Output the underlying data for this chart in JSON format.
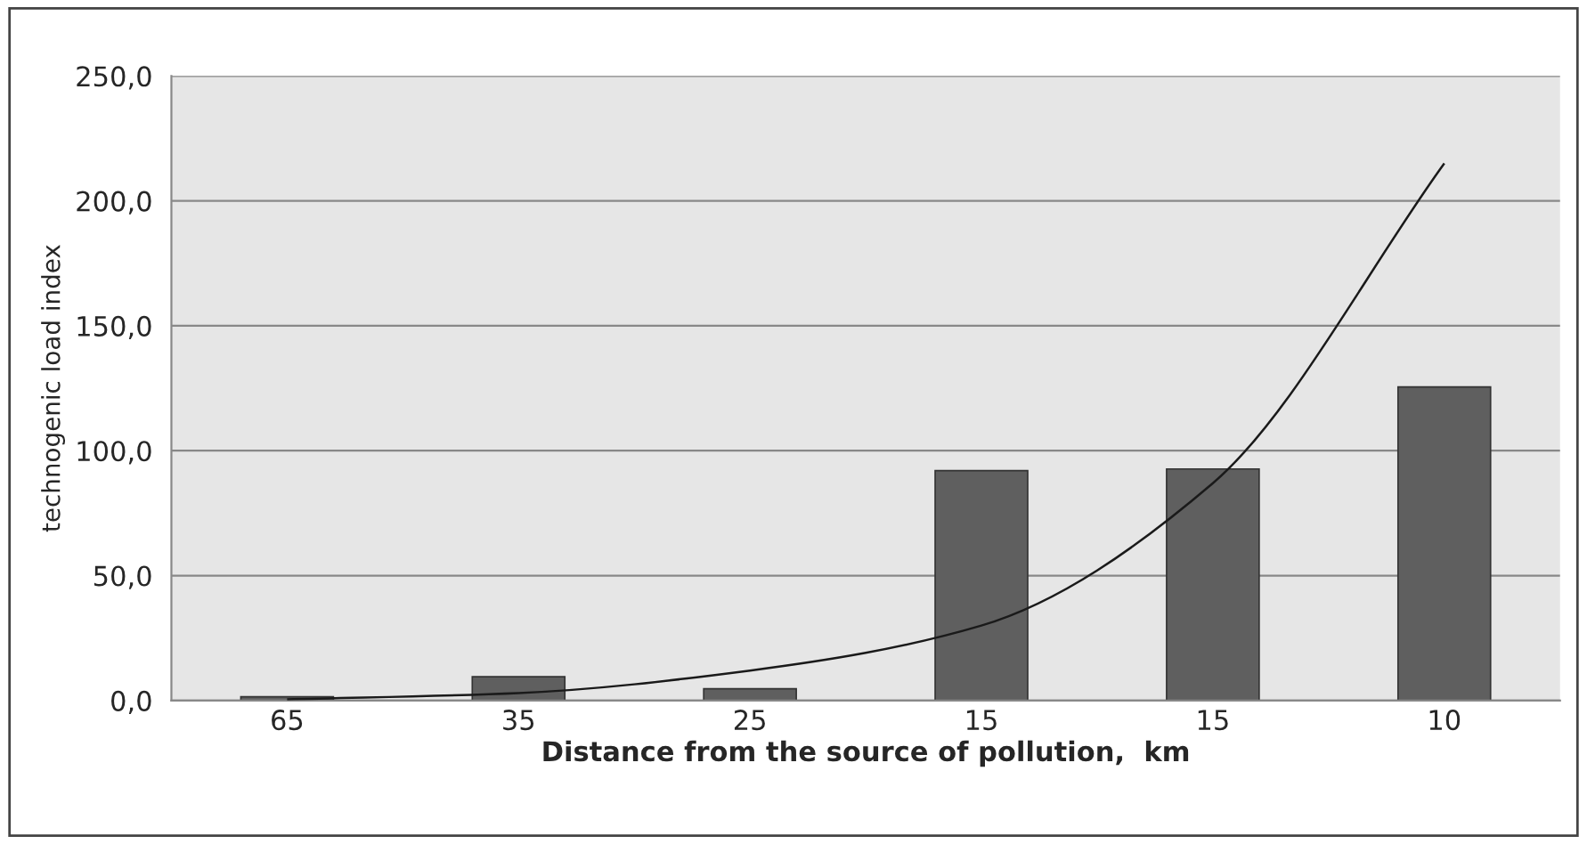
{
  "chart_data": {
    "type": "bar",
    "xlabel": "Distance from the source of pollution,  km",
    "ylabel": "technogenic load index",
    "categories": [
      "65",
      "35",
      "25",
      "15",
      "15",
      "10"
    ],
    "series": [
      {
        "color": "#5f5f5f",
        "values": [
          1.5,
          9.5,
          4.7,
          92,
          92.7,
          125.5
        ]
      },
      {
        "type": "line",
        "color": "#1a1a1a",
        "values": [
          0.5,
          3,
          12,
          30,
          87,
          215
        ]
      }
    ],
    "ylim": [
      0,
      250
    ],
    "yticks": [
      {
        "value": 0,
        "label": "0,0"
      },
      {
        "value": 50,
        "label": "50,0"
      },
      {
        "value": 100,
        "label": "100,0"
      },
      {
        "value": 150,
        "label": "150,0"
      },
      {
        "value": 200,
        "label": "200,0"
      },
      {
        "value": 250,
        "label": "250,0"
      }
    ],
    "grid": "y",
    "legend": false
  }
}
